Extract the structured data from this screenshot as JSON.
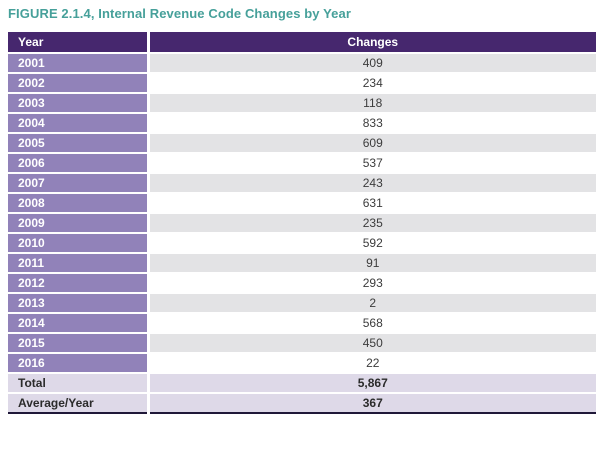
{
  "figure": {
    "title": "FIGURE 2.1.4, Internal Revenue Code Changes by Year"
  },
  "colors": {
    "title_teal": "#46a09a",
    "header_purple": "#46276e",
    "year_cell_purple": "#9182b9",
    "alt_row_gray": "#e3e3e5",
    "alt_row_white": "#ffffff",
    "summary_lavender": "#ded9e8",
    "bottom_rule_dark": "#1f1838",
    "value_text": "#3c3c3c"
  },
  "chart_data": {
    "type": "table",
    "title": "FIGURE 2.1.4, Internal Revenue Code Changes by Year",
    "columns": [
      "Year",
      "Changes"
    ],
    "rows": [
      [
        "2001",
        "409"
      ],
      [
        "2002",
        "234"
      ],
      [
        "2003",
        "118"
      ],
      [
        "2004",
        "833"
      ],
      [
        "2005",
        "609"
      ],
      [
        "2006",
        "537"
      ],
      [
        "2007",
        "243"
      ],
      [
        "2008",
        "631"
      ],
      [
        "2009",
        "235"
      ],
      [
        "2010",
        "592"
      ],
      [
        "2011",
        "91"
      ],
      [
        "2012",
        "293"
      ],
      [
        "2013",
        "2"
      ],
      [
        "2014",
        "568"
      ],
      [
        "2015",
        "450"
      ],
      [
        "2016",
        "22"
      ]
    ],
    "summary_rows": [
      [
        "Total",
        "5,867"
      ],
      [
        "Average/Year",
        "367"
      ]
    ],
    "layout": {
      "row_striping": "changes column alternates gray/white starting gray",
      "year_column_style": "solid purple cells, white bold text",
      "summary_style": "lavender background, bold text, dark bottom rule"
    }
  }
}
